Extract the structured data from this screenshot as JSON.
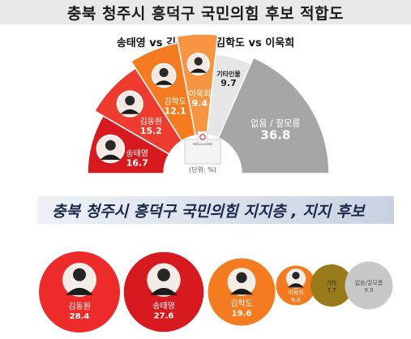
{
  "header": {
    "title": "충북 청주시 흥덕구 국민의힘 후보 적합도",
    "subtitle": "송태영 vs 김동원 vs 김학도 vs 이욱희"
  },
  "unit_label": "(단위: %)",
  "section2": {
    "title": "충북 청주시 흥덕구 국민의힘 지지층 , 지지 후보"
  },
  "colors": {
    "songtaeyoung": "#d71920",
    "kimdongwon": "#ee3b30",
    "kimhakdo": "#f47b20",
    "leeukhee": "#f79442",
    "other": "#9a7b1c",
    "none": "#c8c8c8"
  },
  "chart_data": [
    {
      "type": "pie",
      "series": [
        {
          "label": "송태영",
          "value": 16.7,
          "color": "#d71920"
        },
        {
          "label": "김동원",
          "value": 15.2,
          "color": "#ee3b30"
        },
        {
          "label": "김학도",
          "value": 12.1,
          "color": "#f47b20"
        },
        {
          "label": "이욱희",
          "value": 9.4,
          "color": "#f79442"
        },
        {
          "label": "기타인물",
          "value": 9.7,
          "color": "#e6e6e6"
        },
        {
          "label": "없음 / 잘모름",
          "value": 36.8,
          "color": "#a7a5a6"
        }
      ]
    },
    {
      "type": "bubble",
      "series": [
        {
          "label": "김동원",
          "value": 28.4,
          "color": "#ee2b2b"
        },
        {
          "label": "송태영",
          "value": 27.6,
          "color": "#d71920"
        },
        {
          "label": "김학도",
          "value": 19.6,
          "color": "#f47b20"
        },
        {
          "label": "이욱희",
          "value": 6.8,
          "color": "#f47b20"
        },
        {
          "label": "기타",
          "value": 7.7,
          "color": "#9a7b1c"
        },
        {
          "label": "없음/잘모름",
          "value": 9.9,
          "color": "#c8c8c8"
        }
      ]
    }
  ]
}
